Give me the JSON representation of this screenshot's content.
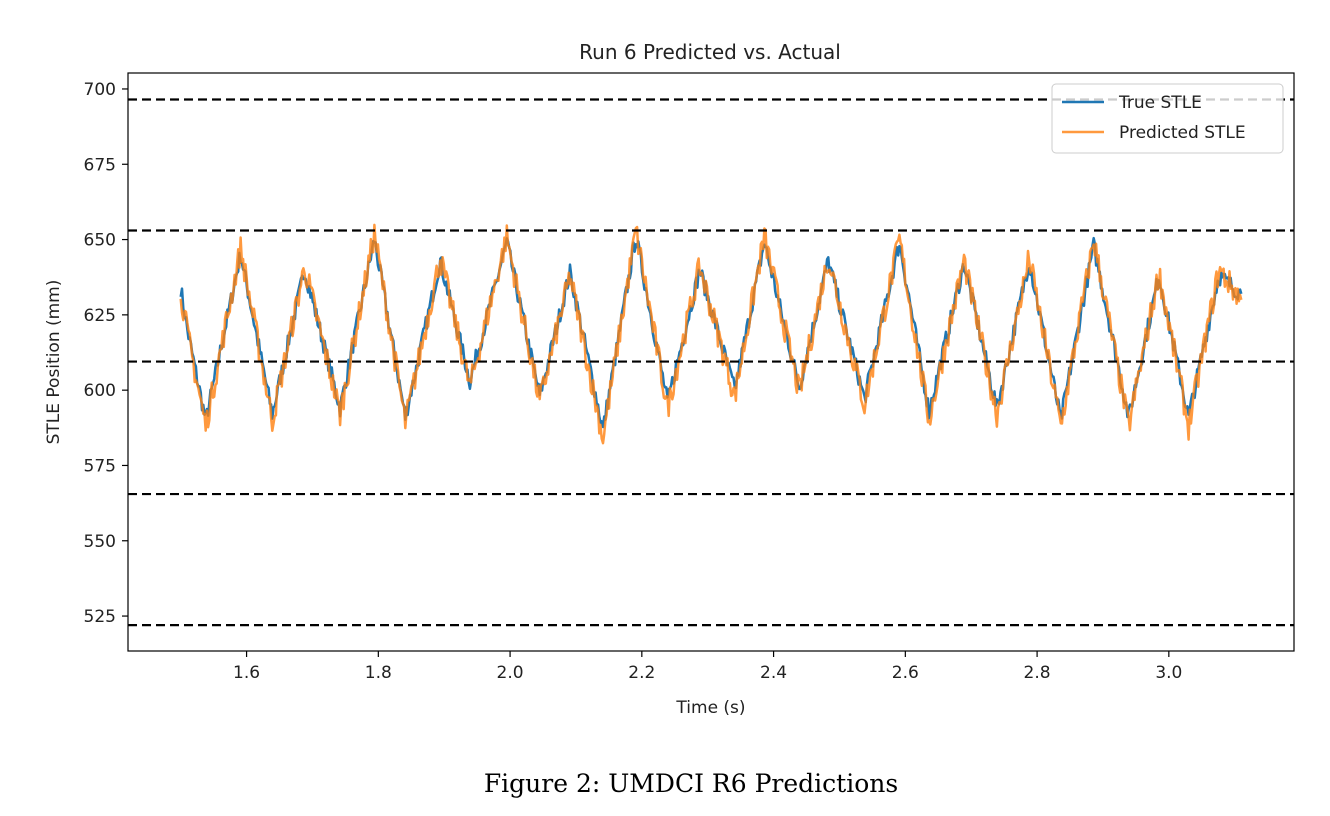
{
  "chart_data": {
    "type": "line",
    "title": "Run 6 Predicted vs. Actual",
    "xlabel": "Time (s)",
    "ylabel": "STLE Position (mm)",
    "xlim": [
      1.42,
      3.19
    ],
    "ylim": [
      513.4,
      705.3
    ],
    "xticks": [
      1.6,
      1.8,
      2.0,
      2.2,
      2.4,
      2.6,
      2.8,
      3.0
    ],
    "xtick_labels": [
      "1.6",
      "1.8",
      "2.0",
      "2.2",
      "2.4",
      "2.6",
      "2.8",
      "3.0"
    ],
    "yticks": [
      525,
      550,
      575,
      600,
      625,
      650,
      675,
      700
    ],
    "ytick_labels": [
      "525",
      "550",
      "575",
      "600",
      "625",
      "650",
      "675",
      "700"
    ],
    "grid": false,
    "legend_position": "top-right",
    "reference_lines": [
      696.5,
      653,
      609.5,
      565.5,
      522
    ],
    "reference_line_style": "dashed",
    "reference_line_color": "#000000",
    "x": [
      1.5,
      1.51,
      1.538,
      1.591,
      1.639,
      1.688,
      1.742,
      1.794,
      1.841,
      1.894,
      1.939,
      1.995,
      2.045,
      2.091,
      2.141,
      2.191,
      2.239,
      2.288,
      2.341,
      2.386,
      2.439,
      2.483,
      2.538,
      2.591,
      2.636,
      2.689,
      2.739,
      2.788,
      2.836,
      2.886,
      2.939,
      2.985,
      3.03,
      3.076,
      3.11
    ],
    "series": [
      {
        "name": "True STLE",
        "color": "#1f77b4",
        "values": [
          634,
          620,
          590,
          645,
          592,
          640,
          594,
          650,
          591,
          643,
          603,
          649,
          598,
          639,
          587,
          651,
          596,
          640,
          600,
          649,
          601,
          643,
          597,
          649,
          593,
          642,
          594,
          643,
          590,
          648,
          591,
          638,
          591,
          638,
          632
        ]
      },
      {
        "name": "Predicted STLE",
        "color": "#ff7f0e",
        "values": [
          633,
          619,
          588,
          647,
          590,
          641,
          592,
          652,
          589,
          644,
          601,
          651,
          596,
          638,
          584,
          653,
          594,
          641,
          598,
          651,
          599,
          644,
          595,
          650,
          590,
          643,
          592,
          644,
          588,
          650,
          588,
          639,
          588,
          640,
          630
        ]
      }
    ]
  },
  "caption": "Figure 2: UMDCI R6 Predictions"
}
